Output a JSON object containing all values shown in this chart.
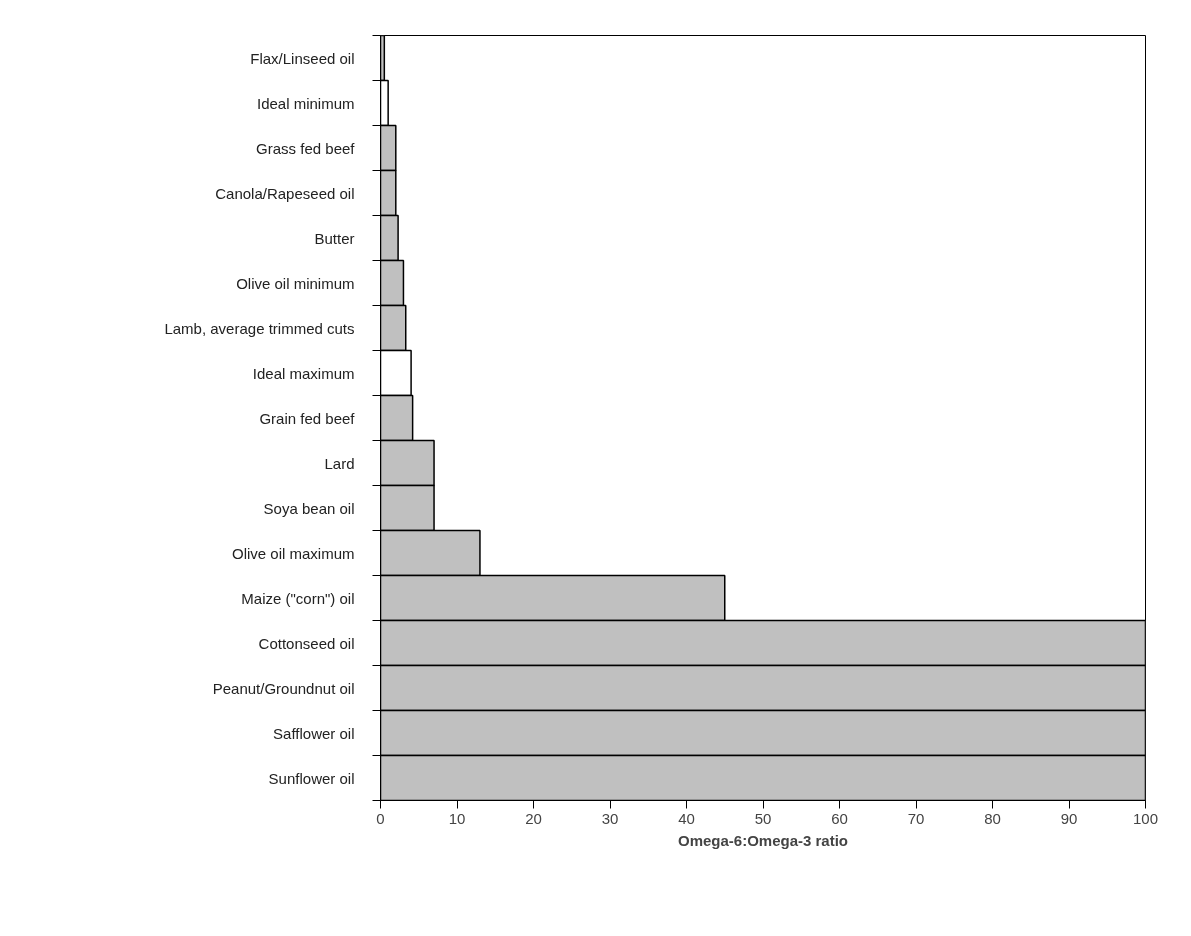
{
  "chart_data": {
    "type": "bar",
    "orientation": "horizontal",
    "xlabel": "Omega-6:Omega-3 ratio",
    "categories": [
      "Flax/Linseed oil",
      "Ideal minimum",
      "Grass fed beef",
      "Canola/Rapeseed oil",
      "Butter",
      "Olive oil minimum",
      "Lamb, average trimmed cuts",
      "Ideal maximum",
      "Grain fed beef",
      "Lard",
      "Soya bean oil",
      "Olive oil maximum",
      "Maize (\"corn\") oil",
      "Cottonseed oil",
      "Peanut/Groundnut oil",
      "Safflower oil",
      "Sunflower oil"
    ],
    "values": [
      0.5,
      1,
      2,
      2,
      2.3,
      3,
      3.3,
      4,
      4.2,
      7,
      7,
      13,
      45,
      100,
      100,
      100,
      100
    ],
    "colors": [
      "#c0c0c0",
      "#ffffff",
      "#c0c0c0",
      "#c0c0c0",
      "#c0c0c0",
      "#c0c0c0",
      "#c0c0c0",
      "#ffffff",
      "#c0c0c0",
      "#c0c0c0",
      "#c0c0c0",
      "#c0c0c0",
      "#c0c0c0",
      "#c0c0c0",
      "#c0c0c0",
      "#c0c0c0",
      "#c0c0c0"
    ],
    "xlim": [
      0,
      100
    ],
    "xticks": [
      0,
      10,
      20,
      30,
      40,
      50,
      60,
      70,
      80,
      90,
      100
    ],
    "grid": false
  }
}
